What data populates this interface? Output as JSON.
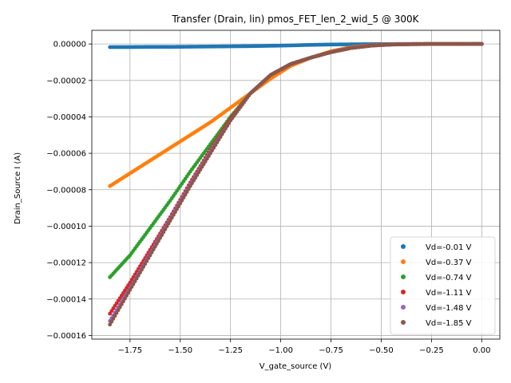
{
  "chart_data": {
    "type": "scatter",
    "title": "Transfer (Drain, lin) pmos_FET_len_2_wid_5 @ 300K",
    "xlabel": "V_gate_source (V)",
    "ylabel": "Drain_Source I (A)",
    "xlim": [
      -1.94,
      0.09
    ],
    "ylim": [
      -0.000162,
      7.5e-06
    ],
    "xticks": [
      -1.75,
      -1.5,
      -1.25,
      -1.0,
      -0.75,
      -0.5,
      -0.25,
      0.0
    ],
    "xtick_labels": [
      "−1.75",
      "−1.50",
      "−1.25",
      "−1.00",
      "−0.75",
      "−0.50",
      "−0.25",
      "0.00"
    ],
    "yticks": [
      0,
      -2e-05,
      -4e-05,
      -6e-05,
      -8e-05,
      -0.0001,
      -0.00012,
      -0.00014,
      -0.00016
    ],
    "ytick_labels": [
      "0.00000",
      "−0.00002",
      "−0.00004",
      "−0.00006",
      "−0.00008",
      "−0.00010",
      "−0.00012",
      "−0.00014",
      "−0.00016"
    ],
    "grid": true,
    "legend_position": "bottom-right",
    "colors": {
      "axes": "#000000",
      "grid": "#b0b0b0"
    },
    "series": [
      {
        "name": "Vd=-0.01 V",
        "color": "#1f77b4",
        "x": [
          -1.85,
          -1.75,
          -1.65,
          -1.55,
          -1.45,
          -1.35,
          -1.25,
          -1.15,
          -1.05,
          -0.95,
          -0.85,
          -0.75,
          -0.65,
          -0.55,
          -0.45,
          -0.35,
          -0.25,
          -0.15,
          -0.05,
          0.0
        ],
        "y": [
          -1.7e-06,
          -1.7e-06,
          -1.6e-06,
          -1.6e-06,
          -1.5e-06,
          -1.4e-06,
          -1.3e-06,
          -1.2e-06,
          -1e-06,
          -8e-07,
          -5e-07,
          -3e-07,
          -2e-07,
          -1e-07,
          -5e-08,
          0.0,
          0.0,
          0.0,
          0.0,
          0.0
        ]
      },
      {
        "name": "Vd=-0.37 V",
        "color": "#ff7f0e",
        "x": [
          -1.85,
          -1.75,
          -1.65,
          -1.55,
          -1.45,
          -1.35,
          -1.25,
          -1.15,
          -1.05,
          -0.95,
          -0.85,
          -0.75,
          -0.65,
          -0.55,
          -0.45,
          -0.35,
          -0.25,
          -0.15,
          -0.05,
          0.0
        ],
        "y": [
          -7.8e-05,
          -7.1e-05,
          -6.4e-05,
          -5.7e-05,
          -5e-05,
          -4.3e-05,
          -3.5e-05,
          -2.7e-05,
          -1.9e-05,
          -1.2e-05,
          -7.5e-06,
          -4e-06,
          -1.8e-06,
          -7e-07,
          -2e-07,
          -5e-08,
          0.0,
          0.0,
          0.0,
          0.0
        ]
      },
      {
        "name": "Vd=-0.74 V",
        "color": "#2ca02c",
        "x": [
          -1.85,
          -1.75,
          -1.65,
          -1.55,
          -1.45,
          -1.35,
          -1.25,
          -1.15,
          -1.05,
          -0.95,
          -0.85,
          -0.75,
          -0.65,
          -0.55,
          -0.45,
          -0.35,
          -0.25,
          -0.15,
          -0.05,
          0.0
        ],
        "y": [
          -0.000128,
          -0.000116,
          -0.000101,
          -8.6e-05,
          -7e-05,
          -5.5e-05,
          -4e-05,
          -2.7e-05,
          -1.7e-05,
          -1.1e-05,
          -7.5e-06,
          -4.5e-06,
          -2.2e-06,
          -9e-07,
          -3e-07,
          -1e-07,
          0.0,
          0.0,
          0.0,
          0.0
        ]
      },
      {
        "name": "Vd=-1.11 V",
        "color": "#d62728",
        "x": [
          -1.85,
          -1.75,
          -1.65,
          -1.55,
          -1.45,
          -1.35,
          -1.25,
          -1.15,
          -1.05,
          -0.95,
          -0.85,
          -0.75,
          -0.65,
          -0.55,
          -0.45,
          -0.35,
          -0.25,
          -0.15,
          -0.05,
          0.0
        ],
        "y": [
          -0.000148,
          -0.000131,
          -0.000113,
          -9.5e-05,
          -7.6e-05,
          -5.8e-05,
          -4.1e-05,
          -2.7e-05,
          -1.7e-05,
          -1.1e-05,
          -7.5e-06,
          -4.5e-06,
          -2.2e-06,
          -9e-07,
          -3e-07,
          -1e-07,
          0.0,
          0.0,
          0.0,
          0.0
        ]
      },
      {
        "name": "Vd=-1.48 V",
        "color": "#9467bd",
        "x": [
          -1.85,
          -1.75,
          -1.65,
          -1.55,
          -1.45,
          -1.35,
          -1.25,
          -1.15,
          -1.05,
          -0.95,
          -0.85,
          -0.75,
          -0.65,
          -0.55,
          -0.45,
          -0.35,
          -0.25,
          -0.15,
          -0.05,
          0.0
        ],
        "y": [
          -0.000152,
          -0.000134,
          -0.000115,
          -9.6e-05,
          -7.7e-05,
          -5.9e-05,
          -4.2e-05,
          -2.7e-05,
          -1.7e-05,
          -1.1e-05,
          -7.5e-06,
          -4.5e-06,
          -2.2e-06,
          -9e-07,
          -3e-07,
          -1e-07,
          0.0,
          0.0,
          0.0,
          0.0
        ]
      },
      {
        "name": "Vd=-1.85 V",
        "color": "#8c564b",
        "x": [
          -1.85,
          -1.75,
          -1.65,
          -1.55,
          -1.45,
          -1.35,
          -1.25,
          -1.15,
          -1.05,
          -0.95,
          -0.85,
          -0.75,
          -0.65,
          -0.55,
          -0.45,
          -0.35,
          -0.25,
          -0.15,
          -0.05,
          0.0
        ],
        "y": [
          -0.000154,
          -0.000135,
          -0.000116,
          -9.7e-05,
          -7.8e-05,
          -6e-05,
          -4.2e-05,
          -2.7e-05,
          -1.7e-05,
          -1.1e-05,
          -7.5e-06,
          -4.5e-06,
          -2.2e-06,
          -9e-07,
          -3e-07,
          -1e-07,
          0.0,
          0.0,
          0.0,
          0.0
        ]
      }
    ]
  }
}
